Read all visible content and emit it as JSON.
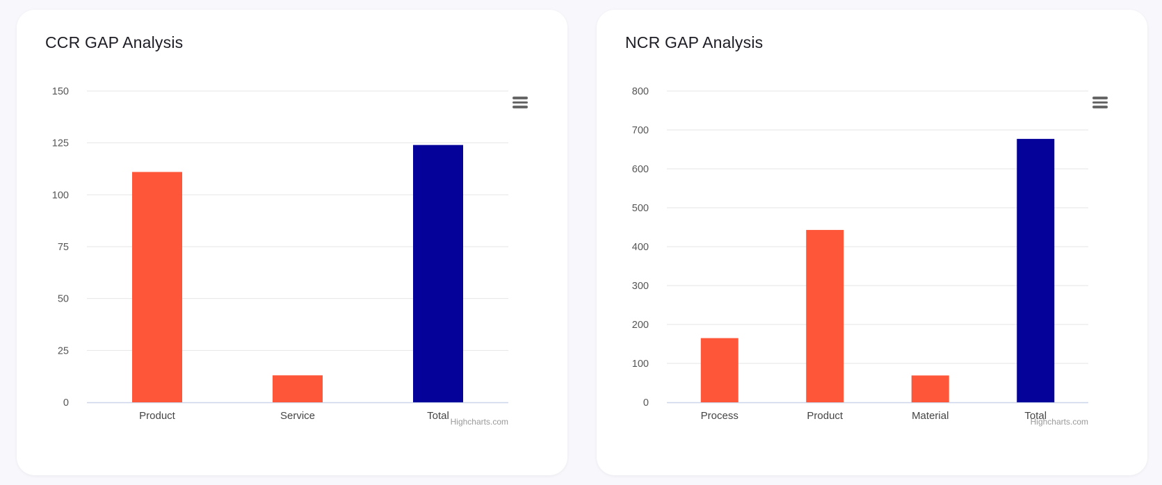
{
  "colors": {
    "primary": "#fe5639",
    "total": "#050299"
  },
  "chart_data": [
    {
      "type": "bar",
      "title": "CCR GAP Analysis",
      "categories": [
        "Product",
        "Service",
        "Total"
      ],
      "values": [
        111,
        13,
        124
      ],
      "total_index": 2,
      "ylim": [
        0,
        150
      ],
      "ytick_labels": [
        "0",
        "25",
        "50",
        "75",
        "100",
        "125",
        "150"
      ],
      "credits": "Highcharts.com"
    },
    {
      "type": "bar",
      "title": "NCR GAP Analysis",
      "categories": [
        "Process",
        "Product",
        "Material",
        "Total"
      ],
      "values": [
        165,
        443,
        69,
        677
      ],
      "total_index": 3,
      "ylim": [
        0,
        800
      ],
      "ytick_labels": [
        "0",
        "100",
        "200",
        "300",
        "400",
        "500",
        "600",
        "700",
        "800"
      ],
      "credits": "Highcharts.com"
    }
  ]
}
